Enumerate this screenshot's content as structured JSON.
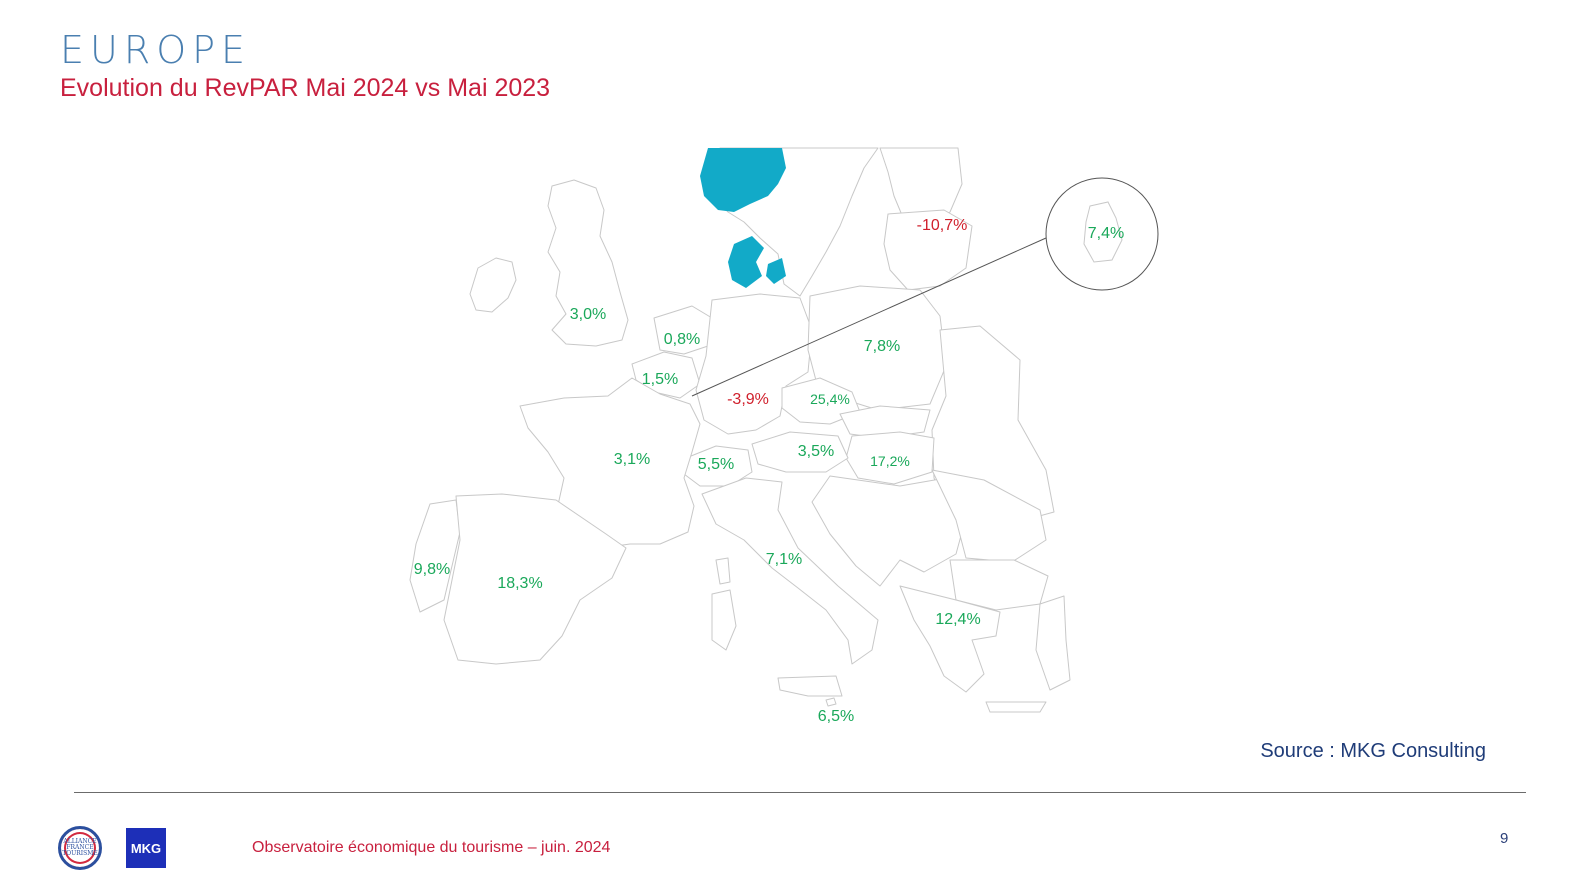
{
  "header": {
    "title": "EUROPE",
    "subtitle": "Evolution du RevPAR Mai 2024 vs Mai 2023"
  },
  "map": {
    "highlight_color": "#12aac8",
    "positive_color": "#1aa85a",
    "negative_color": "#d0202c",
    "highlighted_regions": [
      "norway-south",
      "denmark"
    ],
    "labels": [
      {
        "id": "uk",
        "text": "3,0%",
        "sign": "positive"
      },
      {
        "id": "netherlands",
        "text": "0,8%",
        "sign": "positive"
      },
      {
        "id": "belgium",
        "text": "1,5%",
        "sign": "positive"
      },
      {
        "id": "germany",
        "text": "-3,9%",
        "sign": "negative"
      },
      {
        "id": "czechia",
        "text": "25,4%",
        "sign": "positive"
      },
      {
        "id": "poland",
        "text": "7,8%",
        "sign": "positive"
      },
      {
        "id": "lithuania",
        "text": "-10,7%",
        "sign": "negative"
      },
      {
        "id": "luxembourg",
        "text": "7,4%",
        "sign": "positive"
      },
      {
        "id": "france",
        "text": "3,1%",
        "sign": "positive"
      },
      {
        "id": "switzerland",
        "text": "5,5%",
        "sign": "positive"
      },
      {
        "id": "austria",
        "text": "3,5%",
        "sign": "positive"
      },
      {
        "id": "hungary",
        "text": "17,2%",
        "sign": "positive"
      },
      {
        "id": "portugal",
        "text": "9,8%",
        "sign": "positive"
      },
      {
        "id": "spain",
        "text": "18,3%",
        "sign": "positive"
      },
      {
        "id": "italy",
        "text": "7,1%",
        "sign": "positive"
      },
      {
        "id": "greece",
        "text": "12,4%",
        "sign": "positive"
      },
      {
        "id": "malta",
        "text": "6,5%",
        "sign": "positive"
      }
    ]
  },
  "source": "Source : MKG Consulting",
  "footer": {
    "logo_af_text": "ALLIANCE FRANCE TOURISME",
    "logo_mkg_text": "MKG",
    "text": "Observatoire économique du tourisme – juin. 2024",
    "page_number": "9"
  }
}
